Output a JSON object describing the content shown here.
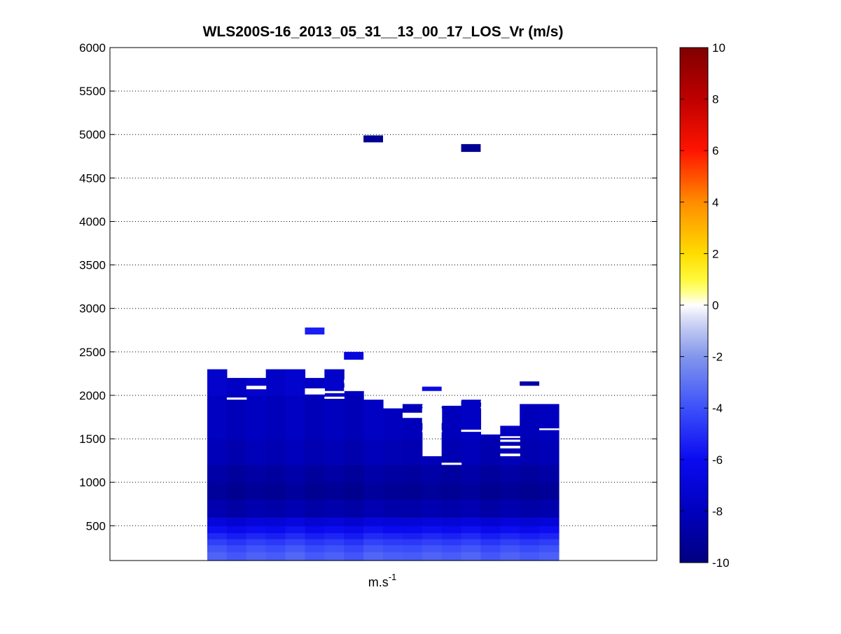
{
  "chart_data": {
    "type": "heatmap",
    "title": "WLS200S-16_2013_05_31__13_00_17_LOS_Vr (m/s)",
    "xlabel_base": "m.s",
    "xlabel_exp": "-1",
    "ylabel": "",
    "ylim": [
      100,
      6000
    ],
    "yticks": [
      500,
      1000,
      1500,
      2000,
      2500,
      3000,
      3500,
      4000,
      4500,
      5000,
      5500,
      6000
    ],
    "grid": "dotted horizontal",
    "colorbar": {
      "label": "",
      "clim": [
        -10,
        10
      ],
      "ticks": [
        -10,
        -8,
        -6,
        -4,
        -2,
        0,
        2,
        4,
        6,
        8,
        10
      ],
      "colormap": "blue-white-yellow-red"
    },
    "columns": 18,
    "column_tops_m": [
      2300,
      2200,
      2200,
      2300,
      2300,
      2200,
      2300,
      2050,
      1950,
      1850,
      1900,
      1300,
      1880,
      1950,
      1550,
      1650,
      1900,
      1900
    ],
    "profile_m": [
      [
        100,
        200,
        -3.6
      ],
      [
        200,
        280,
        -4.0
      ],
      [
        280,
        350,
        -4.6
      ],
      [
        350,
        420,
        -5.3
      ],
      [
        420,
        500,
        -6.0
      ],
      [
        500,
        600,
        -7.0
      ],
      [
        600,
        800,
        -8.6
      ],
      [
        800,
        1000,
        -9.3
      ],
      [
        1000,
        1200,
        -8.9
      ],
      [
        1200,
        1500,
        -8.3
      ],
      [
        1500,
        2000,
        -8.0
      ],
      [
        2000,
        2300,
        -7.6
      ]
    ],
    "extra_patches_m": [
      {
        "column": 5,
        "y0": 2700,
        "y1": 2780,
        "value": -5.4
      },
      {
        "column": 7,
        "y0": 2410,
        "y1": 2500,
        "value": -6.8
      },
      {
        "column": 8,
        "y0": 4910,
        "y1": 4990,
        "value": -9.4
      },
      {
        "column": 11,
        "y0": 2050,
        "y1": 2100,
        "value": -6.3
      },
      {
        "column": 13,
        "y0": 4800,
        "y1": 4890,
        "value": -9.4
      },
      {
        "column": 16,
        "y0": 2110,
        "y1": 2160,
        "value": -8.8
      }
    ],
    "gaps_m": [
      {
        "column": 1,
        "y0": 1950,
        "y1": 1975
      },
      {
        "column": 2,
        "y0": 2070,
        "y1": 2110
      },
      {
        "column": 5,
        "y0": 2010,
        "y1": 2080
      },
      {
        "column": 6,
        "y0": 1960,
        "y1": 1985
      },
      {
        "column": 6,
        "y0": 2025,
        "y1": 2050
      },
      {
        "column": 7,
        "y0": 2050,
        "y1": 2090
      },
      {
        "column": 7,
        "y0": 2140,
        "y1": 2180
      },
      {
        "column": 10,
        "y0": 1740,
        "y1": 1800
      },
      {
        "column": 11,
        "y0": 1575,
        "y1": 1600
      },
      {
        "column": 11,
        "y0": 1680,
        "y1": 1850
      },
      {
        "column": 11,
        "y0": 1870,
        "y1": 1885
      },
      {
        "column": 12,
        "y0": 1200,
        "y1": 1225
      },
      {
        "column": 12,
        "y0": 1940,
        "y1": 1960
      },
      {
        "column": 13,
        "y0": 1580,
        "y1": 1605
      },
      {
        "column": 14,
        "y0": 1850,
        "y1": 1870
      },
      {
        "column": 14,
        "y0": 1920,
        "y1": 1940
      },
      {
        "column": 15,
        "y0": 1300,
        "y1": 1330
      },
      {
        "column": 15,
        "y0": 1390,
        "y1": 1420
      },
      {
        "column": 15,
        "y0": 1465,
        "y1": 1490
      },
      {
        "column": 15,
        "y0": 1510,
        "y1": 1530
      },
      {
        "column": 17,
        "y0": 1600,
        "y1": 1620
      }
    ]
  }
}
